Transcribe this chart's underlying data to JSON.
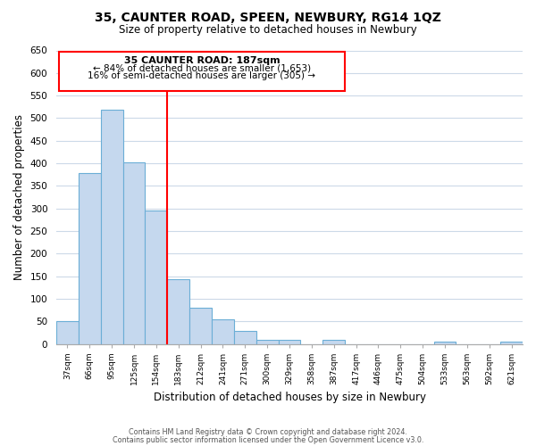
{
  "title": "35, CAUNTER ROAD, SPEEN, NEWBURY, RG14 1QZ",
  "subtitle": "Size of property relative to detached houses in Newbury",
  "xlabel": "Distribution of detached houses by size in Newbury",
  "ylabel": "Number of detached properties",
  "bar_color": "#c5d8ee",
  "bar_edge_color": "#6baed6",
  "categories": [
    "37sqm",
    "66sqm",
    "95sqm",
    "125sqm",
    "154sqm",
    "183sqm",
    "212sqm",
    "241sqm",
    "271sqm",
    "300sqm",
    "329sqm",
    "358sqm",
    "387sqm",
    "417sqm",
    "446sqm",
    "475sqm",
    "504sqm",
    "533sqm",
    "563sqm",
    "592sqm",
    "621sqm"
  ],
  "values": [
    50,
    378,
    519,
    403,
    295,
    143,
    81,
    54,
    29,
    10,
    10,
    0,
    10,
    0,
    0,
    0,
    0,
    5,
    0,
    0,
    5
  ],
  "property_line_idx": 5,
  "property_line_label": "35 CAUNTER ROAD: 187sqm",
  "annotation_line1": "← 84% of detached houses are smaller (1,653)",
  "annotation_line2": "16% of semi-detached houses are larger (305) →",
  "ylim": [
    0,
    650
  ],
  "yticks": [
    0,
    50,
    100,
    150,
    200,
    250,
    300,
    350,
    400,
    450,
    500,
    550,
    600,
    650
  ],
  "footer1": "Contains HM Land Registry data © Crown copyright and database right 2024.",
  "footer2": "Contains public sector information licensed under the Open Government Licence v3.0.",
  "background_color": "#ffffff",
  "grid_color": "#ccd9e8"
}
